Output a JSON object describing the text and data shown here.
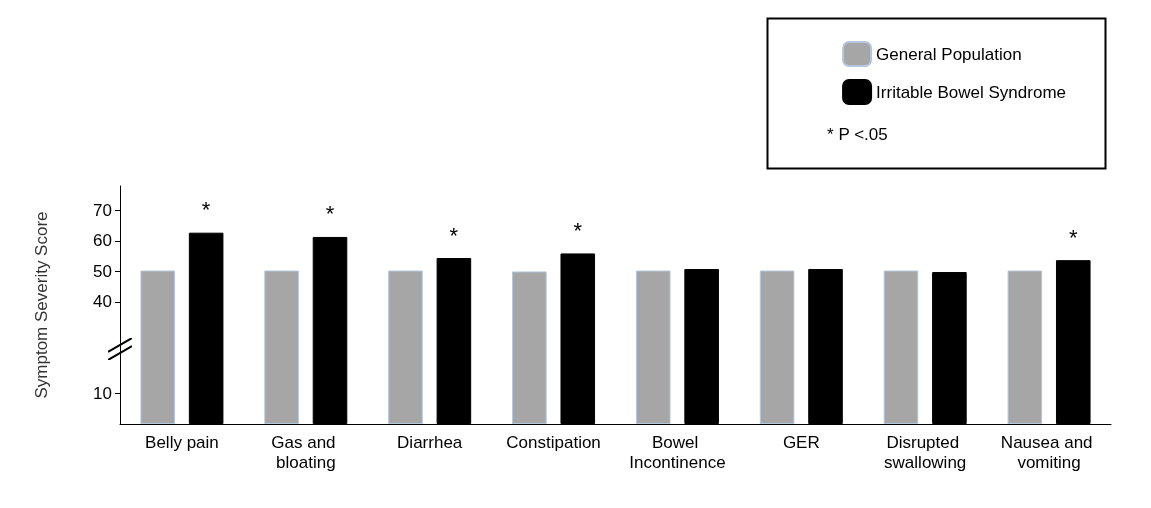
{
  "chart_data": {
    "type": "bar",
    "ylabel": "Symptom Severity Score",
    "categories": [
      "Belly pain",
      "Gas and bloating",
      "Diarrhea",
      "Constipation",
      "Bowel Incontinence",
      "GER",
      "Disrupted swallowing",
      "Nausea and vomiting"
    ],
    "series": [
      {
        "name": "General Population",
        "color": "#a6a6a6",
        "values": [
          50.3,
          50.3,
          50.3,
          50,
          50.3,
          50.3,
          50.3,
          50.3
        ]
      },
      {
        "name": "Irritable Bowel Syndrome",
        "color": "#000000",
        "values": [
          62.7,
          61.3,
          54.4,
          55.9,
          50.8,
          50.8,
          49.8,
          53.7
        ],
        "value_labels": [
          "*",
          "*",
          "*",
          "*",
          null,
          null,
          null,
          "*"
        ]
      }
    ],
    "ylim": [
      0,
      78
    ],
    "yticks": [
      10,
      40,
      50,
      60,
      70
    ],
    "grid": false,
    "legend": "top right",
    "annotations": [
      "* P <.05"
    ]
  }
}
